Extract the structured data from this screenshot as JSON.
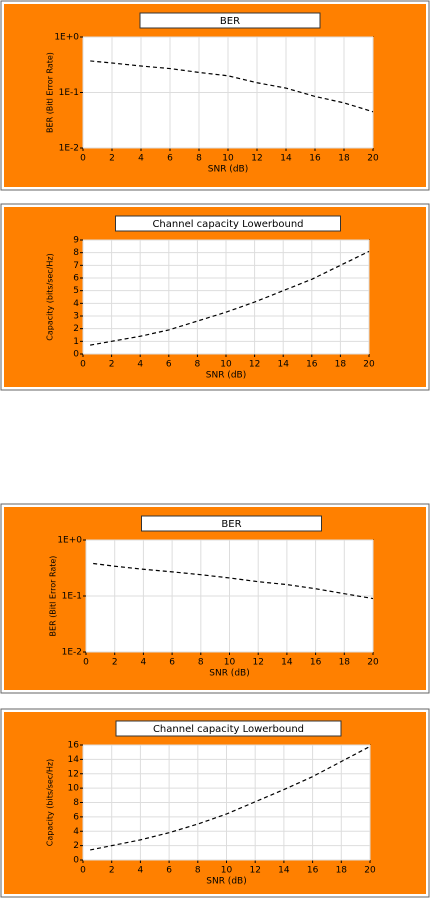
{
  "chart_data": [
    {
      "type": "line",
      "title": "BER",
      "xlabel": "SNR (dB)",
      "ylabel": "BER (Bitl Error Rate)",
      "ylog": true,
      "grid": true,
      "x": [
        0.5,
        2,
        4,
        6,
        8,
        10,
        12,
        14,
        16,
        18,
        20
      ],
      "series": [
        {
          "color": "#000000",
          "values": [
            0.37,
            0.34,
            0.3,
            0.27,
            0.23,
            0.2,
            0.15,
            0.12,
            0.085,
            0.065,
            0.045
          ]
        }
      ],
      "xlim": [
        0,
        20
      ],
      "xticks": [
        0,
        2,
        4,
        6,
        8,
        10,
        12,
        14,
        16,
        18,
        20
      ],
      "ylim": [
        0.01,
        1
      ],
      "yticks": [
        {
          "value": 1,
          "label": "1E+0"
        },
        {
          "value": 0.1,
          "label": "1E-1"
        },
        {
          "value": 0.01,
          "label": "1E-2"
        }
      ]
    },
    {
      "type": "line",
      "title": "Channel capacity Lowerbound",
      "xlabel": "SNR (dB)",
      "ylabel": "Capacity (bits/sec/Hz)",
      "ylog": false,
      "grid": true,
      "x": [
        0.5,
        2,
        4,
        6,
        8,
        10,
        12,
        14,
        16,
        18,
        20
      ],
      "series": [
        {
          "color": "#000000",
          "values": [
            0.7,
            1.0,
            1.4,
            1.9,
            2.6,
            3.3,
            4.1,
            5.0,
            5.9,
            7.0,
            8.1
          ]
        }
      ],
      "xlim": [
        0,
        20
      ],
      "xticks": [
        0,
        2,
        4,
        6,
        8,
        10,
        12,
        14,
        16,
        18,
        20
      ],
      "ylim": [
        0,
        9
      ],
      "yticks": [
        0,
        1,
        2,
        3,
        4,
        5,
        6,
        7,
        8,
        9
      ]
    },
    {
      "type": "line",
      "title": "BER",
      "xlabel": "SNR (dB)",
      "ylabel": "BER (Bitl Error Rate)",
      "ylog": true,
      "grid": true,
      "x": [
        0.5,
        2,
        4,
        6,
        8,
        10,
        12,
        14,
        16,
        18,
        20
      ],
      "series": [
        {
          "color": "#000000",
          "values": [
            0.38,
            0.34,
            0.3,
            0.27,
            0.24,
            0.21,
            0.18,
            0.16,
            0.135,
            0.11,
            0.09
          ]
        }
      ],
      "xlim": [
        0,
        20
      ],
      "xticks": [
        0,
        2,
        4,
        6,
        8,
        10,
        12,
        14,
        16,
        18,
        20
      ],
      "ylim": [
        0.01,
        1
      ],
      "yticks": [
        {
          "value": 1,
          "label": "1E+0"
        },
        {
          "value": 0.1,
          "label": "1E-1"
        },
        {
          "value": 0.01,
          "label": "1E-2"
        }
      ]
    },
    {
      "type": "line",
      "title": "Channel capacity Lowerbound",
      "xlabel": "SNR (dB)",
      "ylabel": "Capacity (bits/sec/Hz)",
      "ylog": false,
      "grid": true,
      "x": [
        0.5,
        2,
        4,
        6,
        8,
        10,
        12,
        14,
        16,
        18,
        20
      ],
      "series": [
        {
          "color": "#000000",
          "values": [
            1.4,
            2.0,
            2.8,
            3.8,
            5.0,
            6.4,
            8.1,
            9.8,
            11.6,
            13.7,
            15.8
          ]
        }
      ],
      "xlim": [
        0,
        20
      ],
      "xticks": [
        0,
        2,
        4,
        6,
        8,
        10,
        12,
        14,
        16,
        18,
        20
      ],
      "ylim": [
        0,
        16
      ],
      "yticks": [
        0,
        2,
        4,
        6,
        8,
        10,
        12,
        14,
        16
      ]
    }
  ]
}
